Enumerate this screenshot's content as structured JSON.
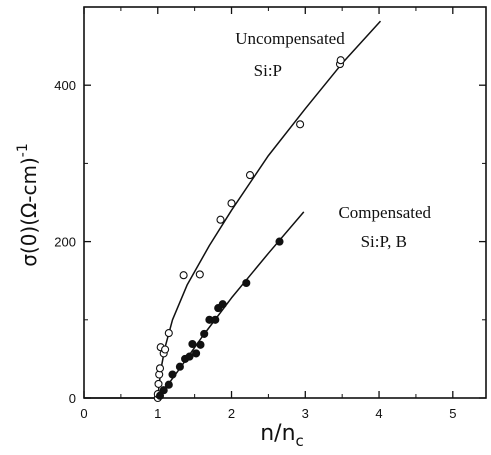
{
  "chart_data": {
    "type": "scatter",
    "xlabel": "n/n",
    "xlabel_sub": "c",
    "ylabel": "σ(0)(Ω-cm)",
    "ylabel_sup": "-1",
    "xlim": [
      0,
      5.45
    ],
    "ylim": [
      0,
      500
    ],
    "xticks": [
      0,
      1,
      2,
      3,
      4,
      5
    ],
    "yticks": [
      0,
      200,
      400
    ],
    "grid": false,
    "legend": "none",
    "series": [
      {
        "marker": "open-circle",
        "points": [
          [
            1.0,
            0
          ],
          [
            1.0,
            5
          ],
          [
            1.01,
            18
          ],
          [
            1.02,
            30
          ],
          [
            1.03,
            38
          ],
          [
            1.04,
            65
          ],
          [
            1.08,
            57
          ],
          [
            1.1,
            62
          ],
          [
            1.15,
            83
          ],
          [
            1.35,
            157
          ],
          [
            1.57,
            158
          ],
          [
            1.85,
            228
          ],
          [
            2.0,
            249
          ],
          [
            2.25,
            285
          ],
          [
            2.93,
            350
          ],
          [
            3.47,
            427
          ],
          [
            3.48,
            432
          ]
        ],
        "fit": [
          [
            0.0,
            0
          ],
          [
            1.0,
            0
          ],
          [
            1.02,
            18
          ],
          [
            1.05,
            40
          ],
          [
            1.1,
            65
          ],
          [
            1.2,
            100
          ],
          [
            1.4,
            145
          ],
          [
            1.7,
            195
          ],
          [
            2.0,
            240
          ],
          [
            2.5,
            310
          ],
          [
            3.0,
            370
          ],
          [
            3.5,
            428
          ],
          [
            4.02,
            482
          ]
        ]
      },
      {
        "marker": "filled-circle",
        "points": [
          [
            1.03,
            3
          ],
          [
            1.08,
            10
          ],
          [
            1.15,
            17
          ],
          [
            1.2,
            30
          ],
          [
            1.3,
            40
          ],
          [
            1.37,
            50
          ],
          [
            1.43,
            53
          ],
          [
            1.47,
            69
          ],
          [
            1.52,
            57
          ],
          [
            1.58,
            68
          ],
          [
            1.63,
            82
          ],
          [
            1.7,
            100
          ],
          [
            1.78,
            100
          ],
          [
            1.82,
            115
          ],
          [
            1.88,
            120
          ],
          [
            2.2,
            147
          ],
          [
            2.65,
            200
          ]
        ],
        "fit": [
          [
            1.0,
            0
          ],
          [
            1.1,
            12
          ],
          [
            1.3,
            38
          ],
          [
            1.6,
            78
          ],
          [
            2.0,
            128
          ],
          [
            2.5,
            185
          ],
          [
            2.98,
            238
          ]
        ]
      }
    ],
    "annotations": [
      {
        "text": "Uncompensated",
        "x": 2.05,
        "y": 453
      },
      {
        "text": "Si:P",
        "x": 2.3,
        "y": 412
      },
      {
        "text": "Compensated",
        "x": 3.45,
        "y": 230
      },
      {
        "text": "Si:P, B",
        "x": 3.75,
        "y": 193
      }
    ]
  }
}
